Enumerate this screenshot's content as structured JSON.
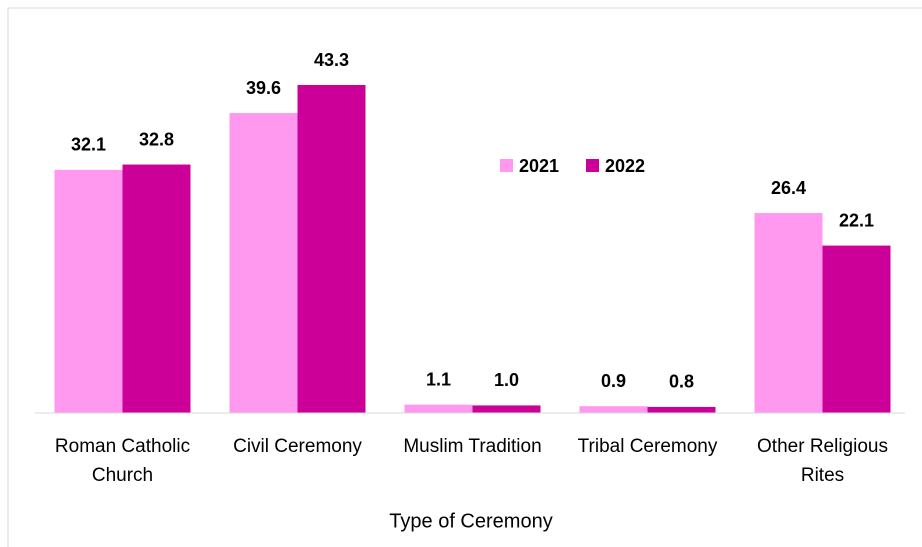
{
  "chart_data": {
    "type": "bar",
    "x_label": "Type of Ceremony",
    "categories": [
      "Roman Catholic Church",
      "Civil Ceremony",
      "Muslim Tradition",
      "Tribal Ceremony",
      "Other Religious Rites"
    ],
    "series": [
      {
        "name": "2021",
        "color": "#ff99f0",
        "values": [
          32.1,
          39.6,
          1.1,
          0.9,
          26.4
        ],
        "value_labels": [
          "32.1",
          "39.6",
          "1.1",
          "0.9",
          "26.4"
        ]
      },
      {
        "name": "2022",
        "color": "#cc0099",
        "values": [
          32.8,
          43.3,
          1.0,
          0.8,
          22.1
        ],
        "value_labels": [
          "32.8",
          "43.3",
          "1.0",
          "0.8",
          "22.1"
        ]
      }
    ],
    "legend": "center"
  }
}
